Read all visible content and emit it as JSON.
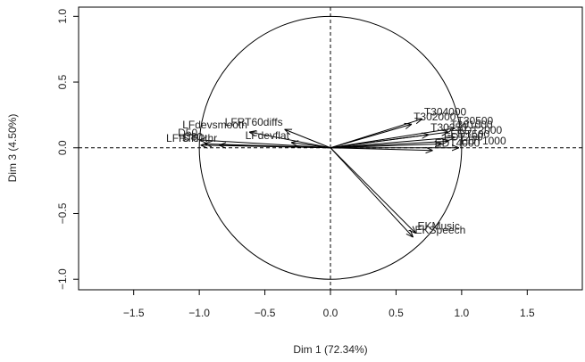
{
  "chart_data": {
    "type": "scatter",
    "xlabel": "Dim 1 (72.34%)",
    "ylabel": "Dim 3 (4.50%)",
    "labels": [
      "D50",
      "STI",
      "C80",
      "LFRT60thr",
      "LFdevsmooth",
      "LFRT60diffs",
      "LFdevflat",
      "EKMusic",
      "EKSpeech",
      "T302000",
      "T304000",
      "T30500",
      "T30250",
      "T301000",
      "EDT2000",
      "EDT4000",
      "EDT1000",
      "EDT500",
      "EDT250"
    ],
    "x": [
      -1.0,
      -0.99,
      -0.96,
      -0.85,
      -0.62,
      -0.35,
      -0.3,
      0.65,
      0.63,
      0.62,
      0.7,
      0.95,
      0.75,
      0.9,
      0.95,
      0.78,
      0.98,
      0.9,
      0.85
    ],
    "y": [
      0.06,
      0.02,
      0.03,
      0.02,
      0.12,
      0.14,
      0.04,
      -0.65,
      -0.68,
      0.18,
      0.22,
      0.15,
      0.1,
      0.12,
      0.08,
      -0.02,
      0.0,
      0.05,
      0.03
    ],
    "xlim": [
      -1.92,
      1.92
    ],
    "ylim": [
      -1.08,
      1.07
    ],
    "xticks": [
      {
        "value": -1.5,
        "label": "−1.5"
      },
      {
        "value": -1.0,
        "label": "−1.0"
      },
      {
        "value": -0.5,
        "label": "−0.5"
      },
      {
        "value": 0,
        "label": "0.0"
      },
      {
        "value": 0.5,
        "label": "0.5"
      },
      {
        "value": 1.0,
        "label": "1.0"
      },
      {
        "value": 1.5,
        "label": "1.5"
      }
    ],
    "yticks": [
      {
        "value": -1.0,
        "label": "−1.0"
      },
      {
        "value": -0.5,
        "label": "−0.5"
      },
      {
        "value": 0,
        "label": "0.0"
      },
      {
        "value": 0.5,
        "label": "0.5"
      },
      {
        "value": 1.0,
        "label": "1.0"
      }
    ],
    "color": "#000000"
  }
}
